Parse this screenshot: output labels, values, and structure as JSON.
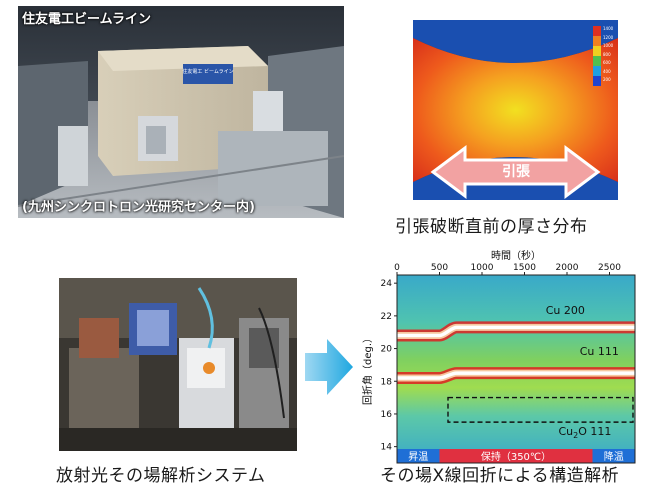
{
  "beamline_photo": {
    "title": "住友電工ビームライン",
    "location_note": "(九州シンクロトロン光研究センター内)",
    "sign_text": "住友電工 ビームライン"
  },
  "thermal_map": {
    "arrow_label": "引張",
    "caption": "引張破断直前の厚さ分布",
    "legend_ticks": [
      "1400",
      "1200",
      "1000",
      "800",
      "600",
      "400",
      "200"
    ]
  },
  "insitu_system": {
    "caption": "放射光その場解析システム"
  },
  "arrow": {
    "direction": "right"
  },
  "diffraction_chart": {
    "caption": "その場X線回折による構造解析",
    "chart_data": {
      "type": "heatmap",
      "xlabel": "時間（秒）",
      "ylabel": "回折角（deg.）",
      "x_ticks": [
        "0",
        "500",
        "1000",
        "1500",
        "2000",
        "2500"
      ],
      "y_ticks": [
        "24",
        "22",
        "20",
        "18",
        "16",
        "14"
      ],
      "xlim": [
        0,
        2800
      ],
      "ylim": [
        13,
        24.5
      ],
      "peaks": [
        {
          "name": "Cu 200",
          "angle_start": 20.8,
          "angle_end": 21.3,
          "transition_s": [
            500,
            700
          ]
        },
        {
          "name": "Cu 111",
          "angle_start": 18.2,
          "angle_end": 18.5,
          "transition_s": [
            500,
            700
          ]
        },
        {
          "name": "Cu2O 111",
          "angle_region": [
            15.5,
            17.0
          ],
          "time_region": [
            600,
            2800
          ]
        }
      ],
      "peak_labels": {
        "cu200": "Cu 200",
        "cu111": "Cu 111",
        "cu2o_base": "Cu",
        "cu2o_sub": "2",
        "cu2o_rest": "O 111"
      },
      "phases": [
        {
          "label": "昇温",
          "color": "#1f6fd6"
        },
        {
          "label": "保持（350℃）",
          "color": "#e03040"
        },
        {
          "label": "降温",
          "color": "#1f6fd6"
        }
      ]
    }
  }
}
